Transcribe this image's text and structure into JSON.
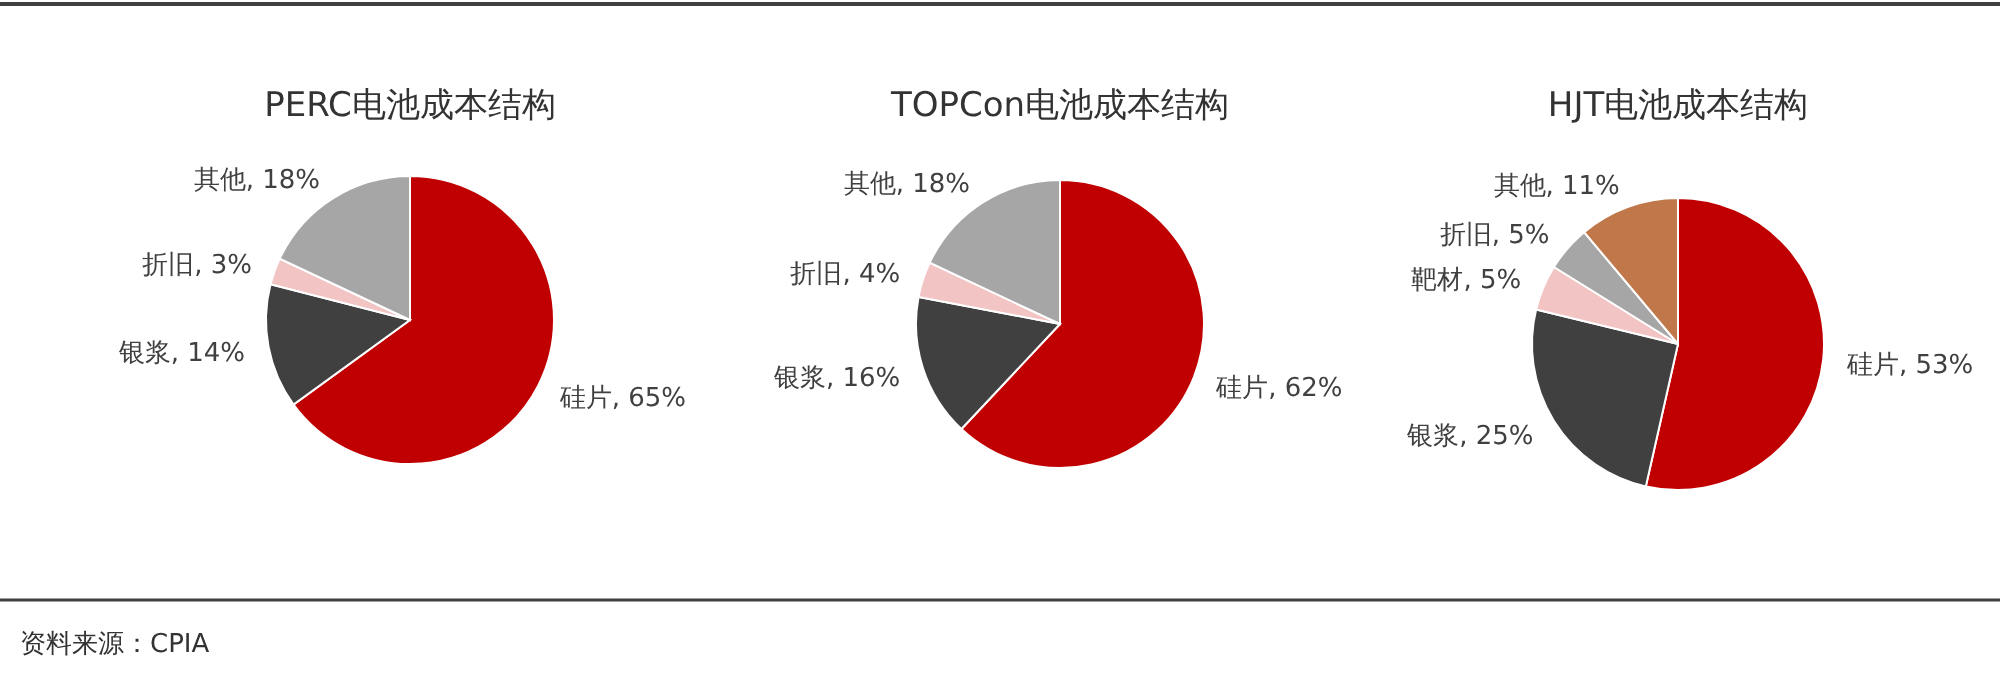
{
  "chart_data": [
    {
      "type": "pie",
      "title": "PERC电池成本结构",
      "categories": [
        "硅片",
        "银浆",
        "折旧",
        "其他"
      ],
      "values": [
        65,
        14,
        3,
        18
      ],
      "colors": [
        "#c00000",
        "#404040",
        "#f2c4c4",
        "#a6a6a6"
      ],
      "value_labels": [
        "65%",
        "14%",
        "3%",
        "18%"
      ],
      "annotations": [
        "资料来源：CPIA"
      ]
    },
    {
      "type": "pie",
      "title": "TOPCon电池成本结构",
      "categories": [
        "硅片",
        "银浆",
        "折旧",
        "其他"
      ],
      "values": [
        62,
        16,
        4,
        18
      ],
      "colors": [
        "#c00000",
        "#404040",
        "#f2c4c4",
        "#a6a6a6"
      ],
      "value_labels": [
        "62%",
        "16%",
        "4%",
        "18%"
      ]
    },
    {
      "type": "pie",
      "title": "HJT电池成本结构",
      "categories": [
        "硅片",
        "银浆",
        "靶材",
        "折旧",
        "其他"
      ],
      "values": [
        53,
        25,
        5,
        5,
        11
      ],
      "colors": [
        "#c00000",
        "#404040",
        "#f2c4c4",
        "#a6a6a6",
        "#c0784a"
      ],
      "value_labels": [
        "53%",
        "25%",
        "5%",
        "5%",
        "11%"
      ]
    }
  ]
}
